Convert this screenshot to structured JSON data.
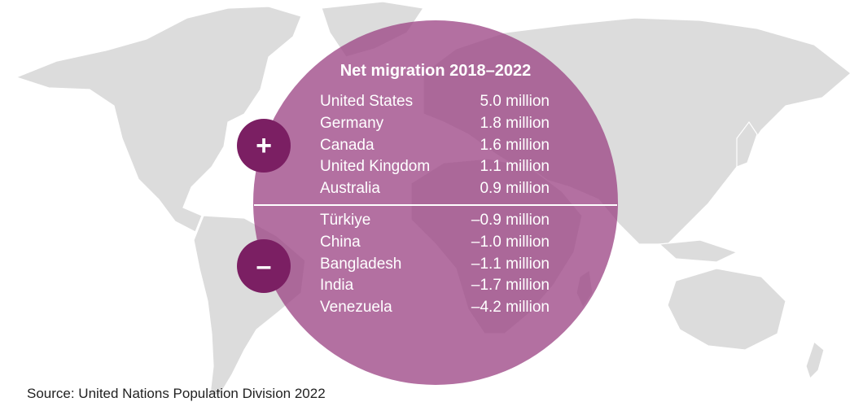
{
  "title": "Net migration 2018–2022",
  "badges": {
    "positive": "+",
    "negative": "–"
  },
  "positive": [
    {
      "country": "United States",
      "value": "5.0 million"
    },
    {
      "country": "Germany",
      "value": "1.8 million"
    },
    {
      "country": "Canada",
      "value": "1.6 million"
    },
    {
      "country": "United Kingdom",
      "value": "1.1 million"
    },
    {
      "country": "Australia",
      "value": "0.9 million"
    }
  ],
  "negative": [
    {
      "country": "Türkiye",
      "value": "–0.9 million"
    },
    {
      "country": "China",
      "value": "–1.0 million"
    },
    {
      "country": "Bangladesh",
      "value": "–1.1 million"
    },
    {
      "country": "India",
      "value": "–1.7 million"
    },
    {
      "country": "Venezuela",
      "value": "–4.2 million"
    }
  ],
  "source": "Source: United Nations Population Division 2022",
  "colors": {
    "circle": "#9e4886",
    "badge": "#7b1f63",
    "land": "#dcdcdc"
  }
}
